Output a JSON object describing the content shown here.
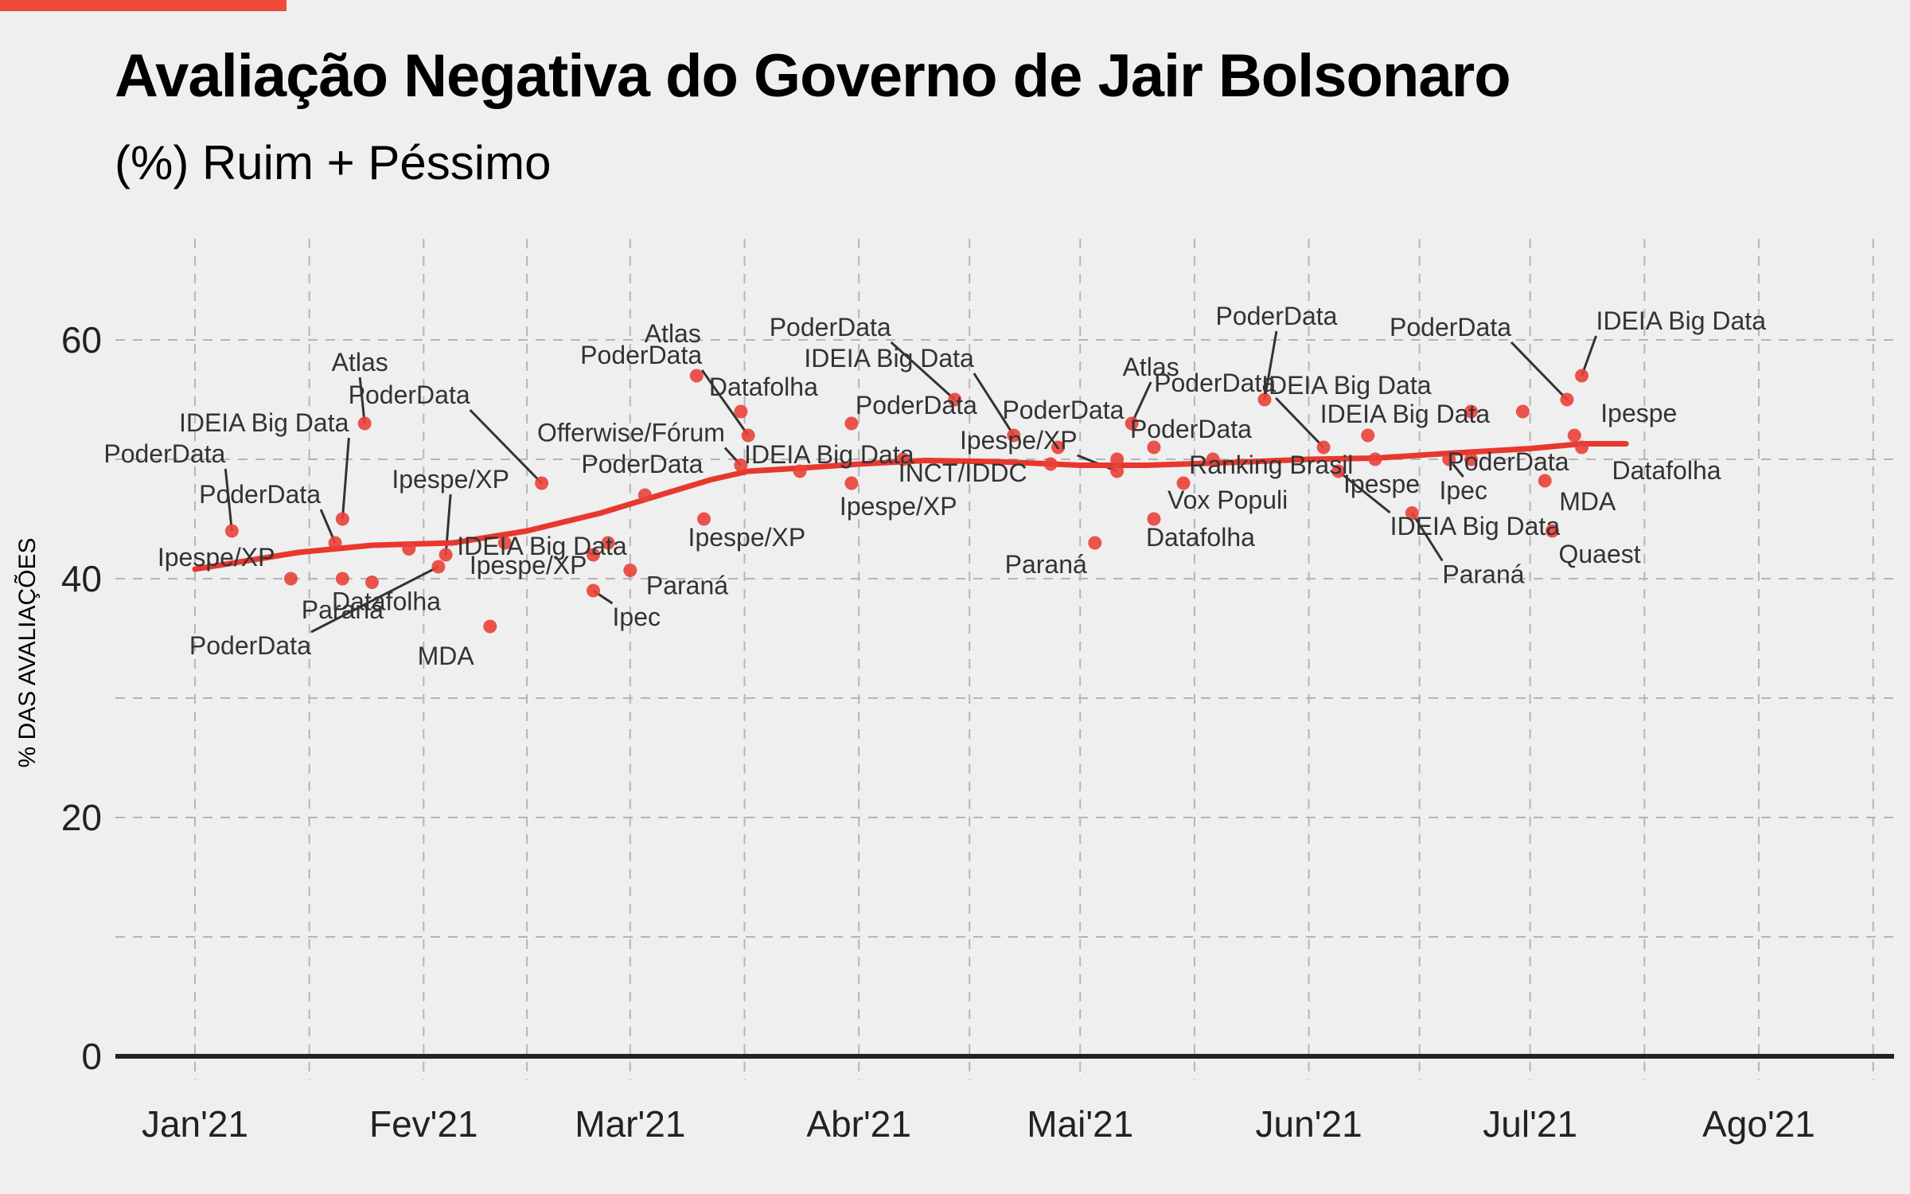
{
  "header": {
    "title": "Avaliação Negativa do Governo de Jair Bolsonaro",
    "subtitle": "(%) Ruim + Péssimo"
  },
  "colors": {
    "accent": "#f04a3a",
    "point": "#e8413a",
    "trend": "#e8382e",
    "axis": "#222222",
    "grid": "#b5b5b5"
  },
  "chart_data": {
    "type": "scatter",
    "ylabel": "% DAS AVALIAÇÕES",
    "xlabel": "",
    "ylim": [
      0,
      60
    ],
    "yticks": [
      0,
      20,
      40,
      60
    ],
    "xticks": [
      {
        "date": "2021-01-01",
        "label": "Jan'21"
      },
      {
        "date": "2021-02-01",
        "label": "Fev'21"
      },
      {
        "date": "2021-03-01",
        "label": "Mar'21"
      },
      {
        "date": "2021-04-01",
        "label": "Abr'21"
      },
      {
        "date": "2021-05-01",
        "label": "Mai'21"
      },
      {
        "date": "2021-06-01",
        "label": "Jun'21"
      },
      {
        "date": "2021-07-01",
        "label": "Jul'21"
      },
      {
        "date": "2021-08-01",
        "label": "Ago'21"
      }
    ],
    "grid": true,
    "legend": "none",
    "points": [
      {
        "date": "2021-01-06",
        "value": 44,
        "label": "PoderData"
      },
      {
        "date": "2021-01-14",
        "value": 40,
        "label": "Ipespe/XP"
      },
      {
        "date": "2021-01-20",
        "value": 43,
        "label": "PoderData"
      },
      {
        "date": "2021-01-21",
        "value": 45,
        "label": "IDEIA Big Data"
      },
      {
        "date": "2021-01-21",
        "value": 40,
        "label": "Paraná"
      },
      {
        "date": "2021-01-25",
        "value": 39.7,
        "label": "Datafolha"
      },
      {
        "date": "2021-01-24",
        "value": 53,
        "label": "Atlas"
      },
      {
        "date": "2021-01-30",
        "value": 42.5,
        "label": ""
      },
      {
        "date": "2021-02-03",
        "value": 41,
        "label": "PoderData"
      },
      {
        "date": "2021-02-04",
        "value": 42,
        "label": "Ipespe/XP"
      },
      {
        "date": "2021-02-10",
        "value": 36,
        "label": "MDA"
      },
      {
        "date": "2021-02-12",
        "value": 43,
        "label": "IDEIA Big Data"
      },
      {
        "date": "2021-02-17",
        "value": 48,
        "label": "PoderData"
      },
      {
        "date": "2021-02-24",
        "value": 42,
        "label": "Ipespe/XP"
      },
      {
        "date": "2021-02-24",
        "value": 39,
        "label": "Ipec"
      },
      {
        "date": "2021-02-26",
        "value": 43,
        "label": ""
      },
      {
        "date": "2021-03-01",
        "value": 40.7,
        "label": "Paraná"
      },
      {
        "date": "2021-03-03",
        "value": 47,
        "label": "PoderData"
      },
      {
        "date": "2021-03-10",
        "value": 57,
        "label": "Atlas"
      },
      {
        "date": "2021-03-11",
        "value": 45,
        "label": "Ipespe/XP"
      },
      {
        "date": "2021-03-16",
        "value": 54,
        "label": "Datafolha"
      },
      {
        "date": "2021-03-17",
        "value": 52,
        "label": "PoderData"
      },
      {
        "date": "2021-03-16",
        "value": 49.5,
        "label": "Offerwise/Fórum"
      },
      {
        "date": "2021-03-24",
        "value": 49,
        "label": "IDEIA Big Data"
      },
      {
        "date": "2021-03-31",
        "value": 53,
        "label": "PoderData"
      },
      {
        "date": "2021-03-31",
        "value": 48,
        "label": "Ipespe/XP"
      },
      {
        "date": "2021-04-07",
        "value": 50,
        "label": "INCT/IDDC"
      },
      {
        "date": "2021-04-14",
        "value": 55,
        "label": "PoderData"
      },
      {
        "date": "2021-04-22",
        "value": 52,
        "label": "IDEIA Big Data"
      },
      {
        "date": "2021-04-28",
        "value": 51,
        "label": "PoderData"
      },
      {
        "date": "2021-04-27",
        "value": 49.6,
        "label": ""
      },
      {
        "date": "2021-05-03",
        "value": 43,
        "label": "Paraná"
      },
      {
        "date": "2021-05-06",
        "value": 49,
        "label": "Ipespe/XP"
      },
      {
        "date": "2021-05-06",
        "value": 50,
        "label": ""
      },
      {
        "date": "2021-05-08",
        "value": 53,
        "label": "Atlas"
      },
      {
        "date": "2021-05-11",
        "value": 51,
        "label": "PoderData"
      },
      {
        "date": "2021-05-11",
        "value": 45,
        "label": "Datafolha"
      },
      {
        "date": "2021-05-15",
        "value": 48,
        "label": "Vox Populi"
      },
      {
        "date": "2021-05-19",
        "value": 50,
        "label": "Ranking Brasil"
      },
      {
        "date": "2021-05-26",
        "value": 55,
        "label": "PoderData"
      },
      {
        "date": "2021-06-03",
        "value": 51,
        "label": "PoderData"
      },
      {
        "date": "2021-06-05",
        "value": 49,
        "label": "IDEIA Big Data"
      },
      {
        "date": "2021-06-09",
        "value": 52,
        "label": "IDEIA Big Data"
      },
      {
        "date": "2021-06-10",
        "value": 50,
        "label": "Ipespe"
      },
      {
        "date": "2021-06-15",
        "value": 45.5,
        "label": "Paraná"
      },
      {
        "date": "2021-06-20",
        "value": 50,
        "label": "Ipec"
      },
      {
        "date": "2021-06-23",
        "value": 54,
        "label": "IDEIA Big Data"
      },
      {
        "date": "2021-06-23",
        "value": 50,
        "label": "PoderData"
      },
      {
        "date": "2021-06-30",
        "value": 54,
        "label": ""
      },
      {
        "date": "2021-07-03",
        "value": 48.2,
        "label": "MDA"
      },
      {
        "date": "2021-07-04",
        "value": 44,
        "label": "Quaest"
      },
      {
        "date": "2021-07-06",
        "value": 55,
        "label": "PoderData"
      },
      {
        "date": "2021-07-07",
        "value": 52,
        "label": "Ipespe"
      },
      {
        "date": "2021-07-08",
        "value": 57,
        "label": "IDEIA Big Data"
      },
      {
        "date": "2021-07-08",
        "value": 51,
        "label": "Datafolha"
      }
    ],
    "trend": [
      {
        "date": "2021-01-01",
        "value": 40.8
      },
      {
        "date": "2021-01-15",
        "value": 42.2
      },
      {
        "date": "2021-01-25",
        "value": 42.8
      },
      {
        "date": "2021-02-05",
        "value": 43.0
      },
      {
        "date": "2021-02-15",
        "value": 44.0
      },
      {
        "date": "2021-02-25",
        "value": 45.5
      },
      {
        "date": "2021-03-05",
        "value": 47.0
      },
      {
        "date": "2021-03-12",
        "value": 48.3
      },
      {
        "date": "2021-03-17",
        "value": 49.0
      },
      {
        "date": "2021-03-25",
        "value": 49.3
      },
      {
        "date": "2021-04-01",
        "value": 49.6
      },
      {
        "date": "2021-04-10",
        "value": 49.9
      },
      {
        "date": "2021-04-20",
        "value": 49.8
      },
      {
        "date": "2021-05-01",
        "value": 49.5
      },
      {
        "date": "2021-05-10",
        "value": 49.5
      },
      {
        "date": "2021-05-20",
        "value": 49.7
      },
      {
        "date": "2021-06-01",
        "value": 50.0
      },
      {
        "date": "2021-06-10",
        "value": 50.1
      },
      {
        "date": "2021-06-20",
        "value": 50.5
      },
      {
        "date": "2021-07-01",
        "value": 50.9
      },
      {
        "date": "2021-07-08",
        "value": 51.3
      },
      {
        "date": "2021-07-14",
        "value": 51.3
      }
    ]
  }
}
